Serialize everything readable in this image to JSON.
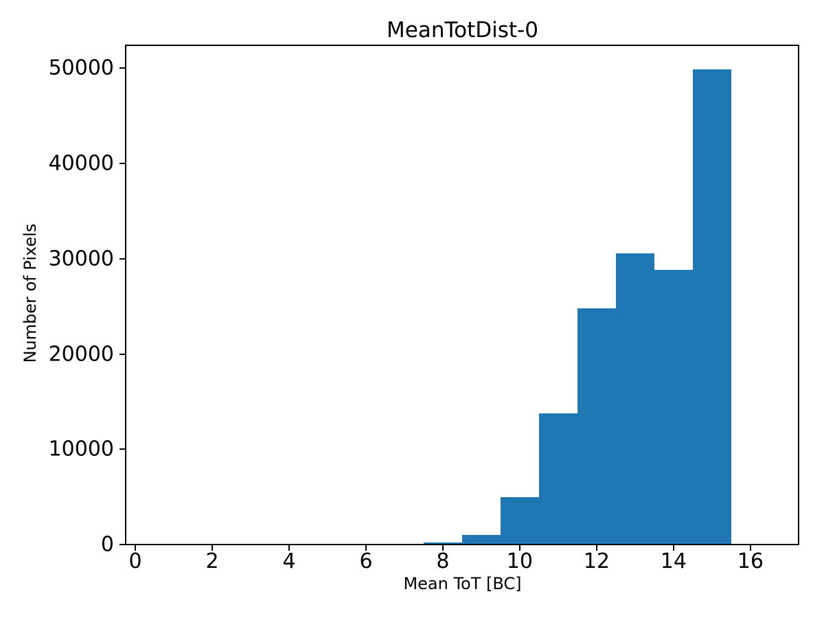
{
  "chart_data": {
    "type": "bar",
    "subtype": "histogram",
    "title": "MeanTotDist-0",
    "xlabel": "Mean ToT [BC]",
    "ylabel": "Number of Pixels",
    "bar_color": "#1f77b4",
    "background_color": "#ffffff",
    "grid": false,
    "legend_position": "none",
    "bin_width": 1,
    "bin_centers": [
      8,
      9,
      10,
      11,
      12,
      13,
      14,
      15
    ],
    "counts": [
      250,
      1000,
      5000,
      13800,
      24800,
      30600,
      28800,
      49900
    ],
    "x_ticks": [
      0,
      2,
      4,
      6,
      8,
      10,
      12,
      14,
      16
    ],
    "y_ticks": [
      0,
      10000,
      20000,
      30000,
      40000,
      50000
    ],
    "xlim": [
      -0.25,
      17.27
    ],
    "ylim": [
      0,
      52400
    ]
  }
}
